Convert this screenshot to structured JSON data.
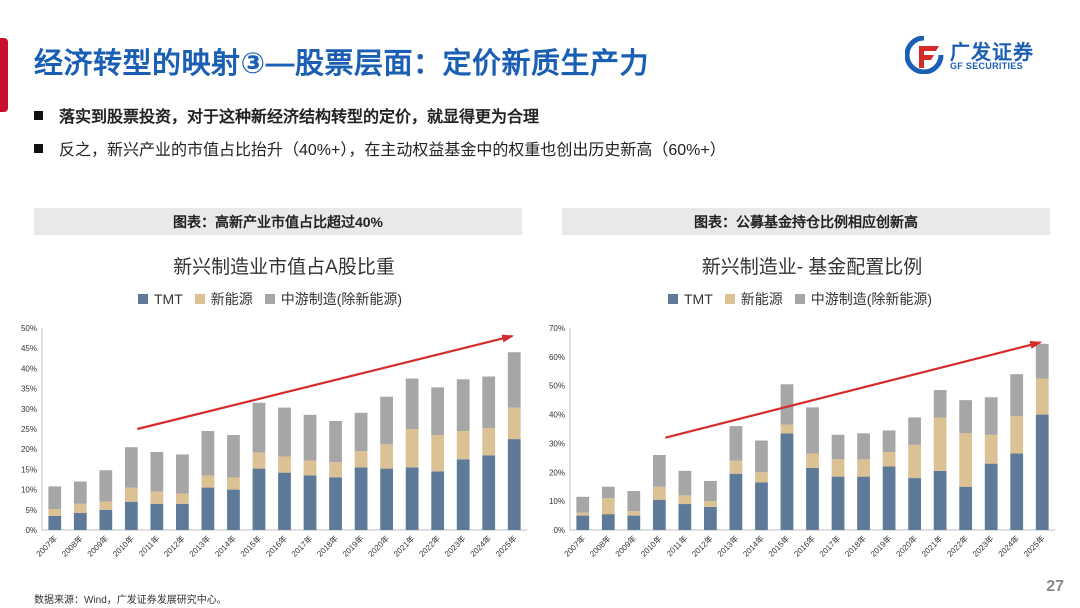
{
  "header": {
    "title": "经济转型的映射③—股票层面：定价新质生产力",
    "logo_name": "广发证券",
    "logo_sub": "GF SECURITIES"
  },
  "bullets": [
    "落实到股票投资，对于这种新经济结构转型的定价，就显得更为合理",
    "反之，新兴产业的市值占比抬升（40%+），在主动权益基金中的权重也创出历史新高（60%+）"
  ],
  "colors": {
    "tmt": "#5d7a99",
    "new_energy": "#dcc194",
    "midstream": "#a6a6a6",
    "arrow": "#d62b2b",
    "title": "#1a5fb4"
  },
  "legend": [
    "TMT",
    "新能源",
    "中游制造(除新能源)"
  ],
  "footer": {
    "source": "数据来源：Wind，广发证券发展研究中心。",
    "page": "27"
  },
  "chart_data": [
    {
      "panel_title": "图表：高新产业市值占比超过40%",
      "title": "新兴制造业市值占A股比重",
      "type": "stacked-bar",
      "categories": [
        "2007年",
        "2008年",
        "2009年",
        "2010年",
        "2011年",
        "2012年",
        "2013年",
        "2014年",
        "2015年",
        "2016年",
        "2017年",
        "2018年",
        "2019年",
        "2020年",
        "2021年",
        "2022年",
        "2023年",
        "2024年",
        "2025年"
      ],
      "series": [
        {
          "name": "TMT",
          "values": [
            3.5,
            4.2,
            5.0,
            7.0,
            6.5,
            6.5,
            10.5,
            10.0,
            15.2,
            14.2,
            13.5,
            13.0,
            15.5,
            15.2,
            15.5,
            14.5,
            17.5,
            18.5,
            22.5
          ]
        },
        {
          "name": "新能源",
          "values": [
            1.7,
            2.3,
            2.0,
            3.5,
            3.0,
            2.5,
            3.0,
            3.0,
            4.0,
            4.0,
            3.7,
            3.8,
            4.0,
            6.0,
            9.5,
            9.0,
            7.0,
            6.7,
            7.8
          ]
        },
        {
          "name": "中游制造(除新能源)",
          "values": [
            5.6,
            5.5,
            7.8,
            10.0,
            9.8,
            9.7,
            11.0,
            10.5,
            12.3,
            12.1,
            11.3,
            10.2,
            9.5,
            11.8,
            12.5,
            11.8,
            12.8,
            12.8,
            13.7
          ]
        }
      ],
      "yticks": [
        "0%",
        "5%",
        "10%",
        "15%",
        "20%",
        "25%",
        "30%",
        "35%",
        "40%",
        "45%",
        "50%"
      ],
      "ylim": [
        0,
        50
      ],
      "trend_arrow": {
        "from": {
          "x": "2010年",
          "y": 25
        },
        "to": {
          "x": "2025年",
          "y": 48
        }
      }
    },
    {
      "panel_title": "图表：公募基金持仓比例相应创新高",
      "title": "新兴制造业- 基金配置比例",
      "type": "stacked-bar",
      "categories": [
        "2007年",
        "2008年",
        "2009年",
        "2010年",
        "2011年",
        "2012年",
        "2013年",
        "2014年",
        "2015年",
        "2016年",
        "2017年",
        "2018年",
        "2019年",
        "2020年",
        "2021年",
        "2022年",
        "2023年",
        "2024年",
        "2025年"
      ],
      "series": [
        {
          "name": "TMT",
          "values": [
            5.0,
            5.5,
            5.0,
            10.5,
            9.0,
            8.0,
            19.5,
            16.5,
            33.5,
            21.5,
            18.5,
            18.5,
            22.0,
            18.0,
            20.5,
            15.0,
            23.0,
            26.5,
            40.0
          ]
        },
        {
          "name": "新能源",
          "values": [
            1.0,
            5.5,
            1.5,
            4.5,
            3.0,
            2.0,
            4.5,
            3.5,
            3.0,
            5.0,
            6.0,
            6.0,
            5.0,
            11.5,
            18.5,
            18.5,
            10.0,
            13.0,
            12.5
          ]
        },
        {
          "name": "中游制造(除新能源)",
          "values": [
            5.5,
            4.0,
            7.0,
            11.0,
            8.5,
            7.0,
            12.0,
            11.0,
            14.0,
            16.0,
            8.5,
            9.0,
            7.5,
            9.5,
            9.5,
            11.5,
            13.0,
            14.5,
            12.0
          ]
        }
      ],
      "yticks": [
        "0%",
        "10%",
        "20%",
        "30%",
        "40%",
        "50%",
        "60%",
        "70%"
      ],
      "ylim": [
        0,
        70
      ],
      "trend_arrow": {
        "from": {
          "x": "2010年",
          "y": 32
        },
        "to": {
          "x": "2025年",
          "y": 65
        }
      }
    }
  ]
}
